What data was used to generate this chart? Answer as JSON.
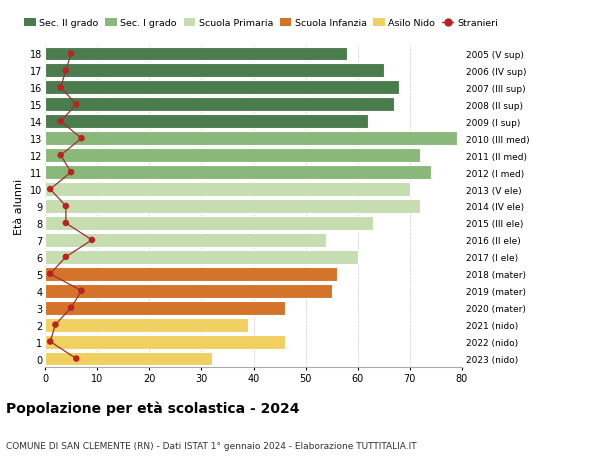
{
  "ages": [
    18,
    17,
    16,
    15,
    14,
    13,
    12,
    11,
    10,
    9,
    8,
    7,
    6,
    5,
    4,
    3,
    2,
    1,
    0
  ],
  "right_labels": [
    "2005 (V sup)",
    "2006 (IV sup)",
    "2007 (III sup)",
    "2008 (II sup)",
    "2009 (I sup)",
    "2010 (III med)",
    "2011 (II med)",
    "2012 (I med)",
    "2013 (V ele)",
    "2014 (IV ele)",
    "2015 (III ele)",
    "2016 (II ele)",
    "2017 (I ele)",
    "2018 (mater)",
    "2019 (mater)",
    "2020 (mater)",
    "2021 (nido)",
    "2022 (nido)",
    "2023 (nido)"
  ],
  "bar_values": [
    58,
    65,
    68,
    67,
    62,
    79,
    72,
    74,
    70,
    72,
    63,
    54,
    60,
    56,
    55,
    46,
    39,
    46,
    32
  ],
  "bar_colors": [
    "#4a7c4e",
    "#4a7c4e",
    "#4a7c4e",
    "#4a7c4e",
    "#4a7c4e",
    "#8ab87a",
    "#8ab87a",
    "#8ab87a",
    "#c5ddb0",
    "#c5ddb0",
    "#c5ddb0",
    "#c5ddb0",
    "#c5ddb0",
    "#d4732a",
    "#d4732a",
    "#d4732a",
    "#f0d060",
    "#f0d060",
    "#f0d060"
  ],
  "stranieri_values": [
    5,
    4,
    3,
    6,
    3,
    7,
    3,
    5,
    1,
    4,
    4,
    9,
    4,
    1,
    7,
    5,
    2,
    1,
    6
  ],
  "legend_labels": [
    "Sec. II grado",
    "Sec. I grado",
    "Scuola Primaria",
    "Scuola Infanzia",
    "Asilo Nido",
    "Stranieri"
  ],
  "legend_colors": [
    "#4a7c4e",
    "#8ab87a",
    "#c5ddb0",
    "#d4732a",
    "#f0d060",
    "#aa1111"
  ],
  "ylabel_left": "Età alunni",
  "title": "Popolazione per età scolastica - 2024",
  "subtitle": "COMUNE DI SAN CLEMENTE (RN) - Dati ISTAT 1° gennaio 2024 - Elaborazione TUTTITALIA.IT",
  "xlim": [
    0,
    80
  ],
  "background_color": "#ffffff"
}
